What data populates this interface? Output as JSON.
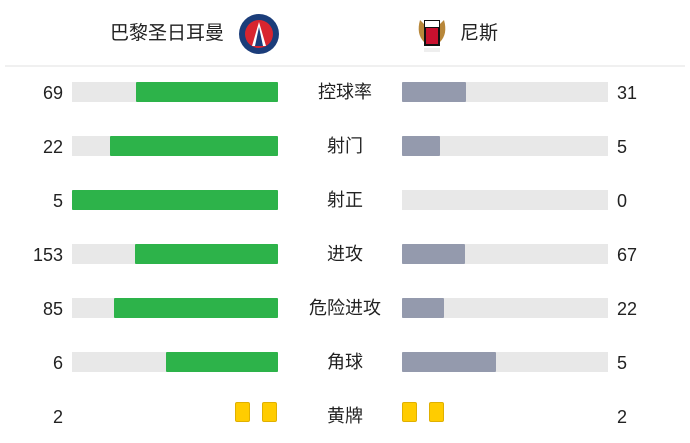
{
  "home": {
    "name": "巴黎圣日耳曼",
    "logo": "psg-crest",
    "color": "#2db34a"
  },
  "away": {
    "name": "尼斯",
    "logo": "nice-crest",
    "color": "#949aad"
  },
  "stats": [
    {
      "label": "控球率",
      "home": "69",
      "away": "31",
      "home_share": 0.69,
      "away_share": 0.31
    },
    {
      "label": "射门",
      "home": "22",
      "away": "5",
      "home_share": 0.815,
      "away_share": 0.185
    },
    {
      "label": "射正",
      "home": "5",
      "away": "0",
      "home_share": 1.0,
      "away_share": 0.0
    },
    {
      "label": "进攻",
      "home": "153",
      "away": "67",
      "home_share": 0.695,
      "away_share": 0.305
    },
    {
      "label": "危险进攻",
      "home": "85",
      "away": "22",
      "home_share": 0.794,
      "away_share": 0.206
    },
    {
      "label": "角球",
      "home": "6",
      "away": "5",
      "home_share": 0.545,
      "away_share": 0.455
    }
  ],
  "yellow_cards": {
    "label": "黄牌",
    "home": "2",
    "away": "2",
    "color": "#ffcc00"
  }
}
